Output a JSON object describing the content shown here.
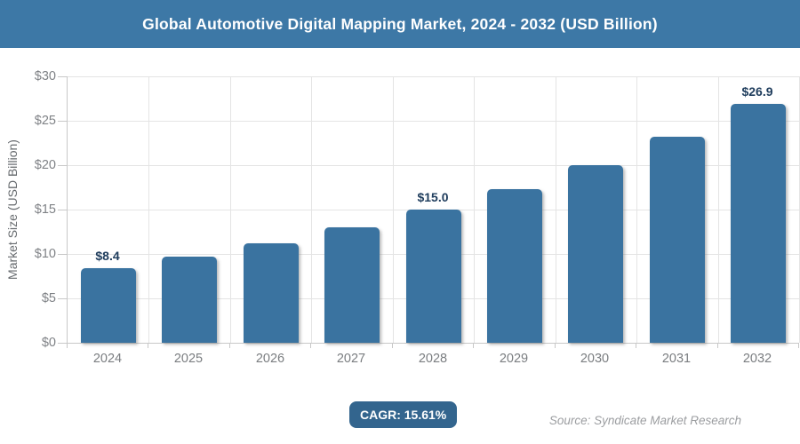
{
  "header": {
    "title": "Global Automotive Digital Mapping Market, 2024 - 2032 (USD Billion)",
    "bg_color": "#3d78a6"
  },
  "chart_data": {
    "type": "bar",
    "categories": [
      "2024",
      "2025",
      "2026",
      "2027",
      "2028",
      "2029",
      "2030",
      "2031",
      "2032"
    ],
    "values": [
      8.4,
      9.7,
      11.2,
      13.0,
      15.0,
      17.3,
      20.0,
      23.2,
      26.9
    ],
    "data_labels": [
      {
        "index": 0,
        "text": "$8.4"
      },
      {
        "index": 4,
        "text": "$15.0"
      },
      {
        "index": 8,
        "text": "$26.9"
      }
    ],
    "title": "Global Automotive Digital Mapping Market, 2024 - 2032 (USD Billion)",
    "xlabel": "",
    "ylabel": "Market Size (USD Billion)",
    "ylim": [
      0,
      30
    ],
    "ytick_step": 5,
    "ytick_labels": [
      "$0",
      "$5",
      "$10",
      "$15",
      "$20",
      "$25",
      "$30"
    ],
    "grid": true,
    "legend": "none",
    "bar_color": "#3a73a0",
    "value_label_color": "#1e3c5c"
  },
  "footer": {
    "cagr_label": "CAGR: 15.61%",
    "badge_color": "#33658e",
    "source": "Source: Syndicate Market Research"
  }
}
